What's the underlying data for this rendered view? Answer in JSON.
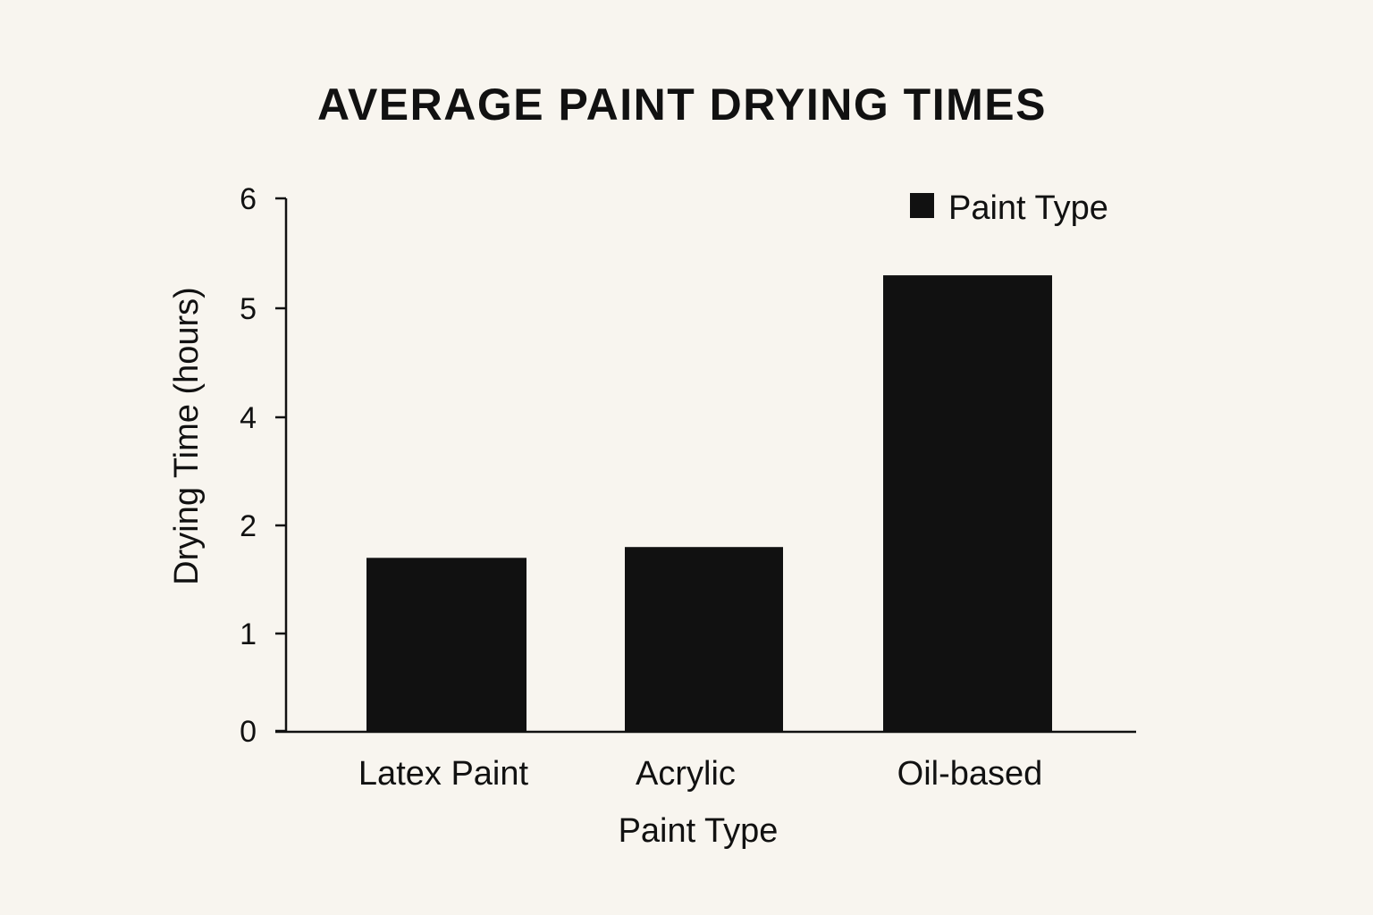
{
  "chart_data": {
    "type": "bar",
    "title": "AVERAGE PAINT DRYING TIMES",
    "xlabel": "Paint Type",
    "ylabel": "Drying Time (hours)",
    "categories": [
      "Latex Paint",
      "Acrylic",
      "Oil-based"
    ],
    "series": [
      {
        "name": "Paint Type",
        "values": [
          1.7,
          1.8,
          5.3
        ],
        "color": "#111111"
      }
    ],
    "y_ticks": [
      "0",
      "1",
      "2",
      "4",
      "5",
      "6"
    ],
    "ylim": [
      0,
      6
    ],
    "grid": false,
    "legend_position": "top-right",
    "background": "#f8f5ef"
  }
}
